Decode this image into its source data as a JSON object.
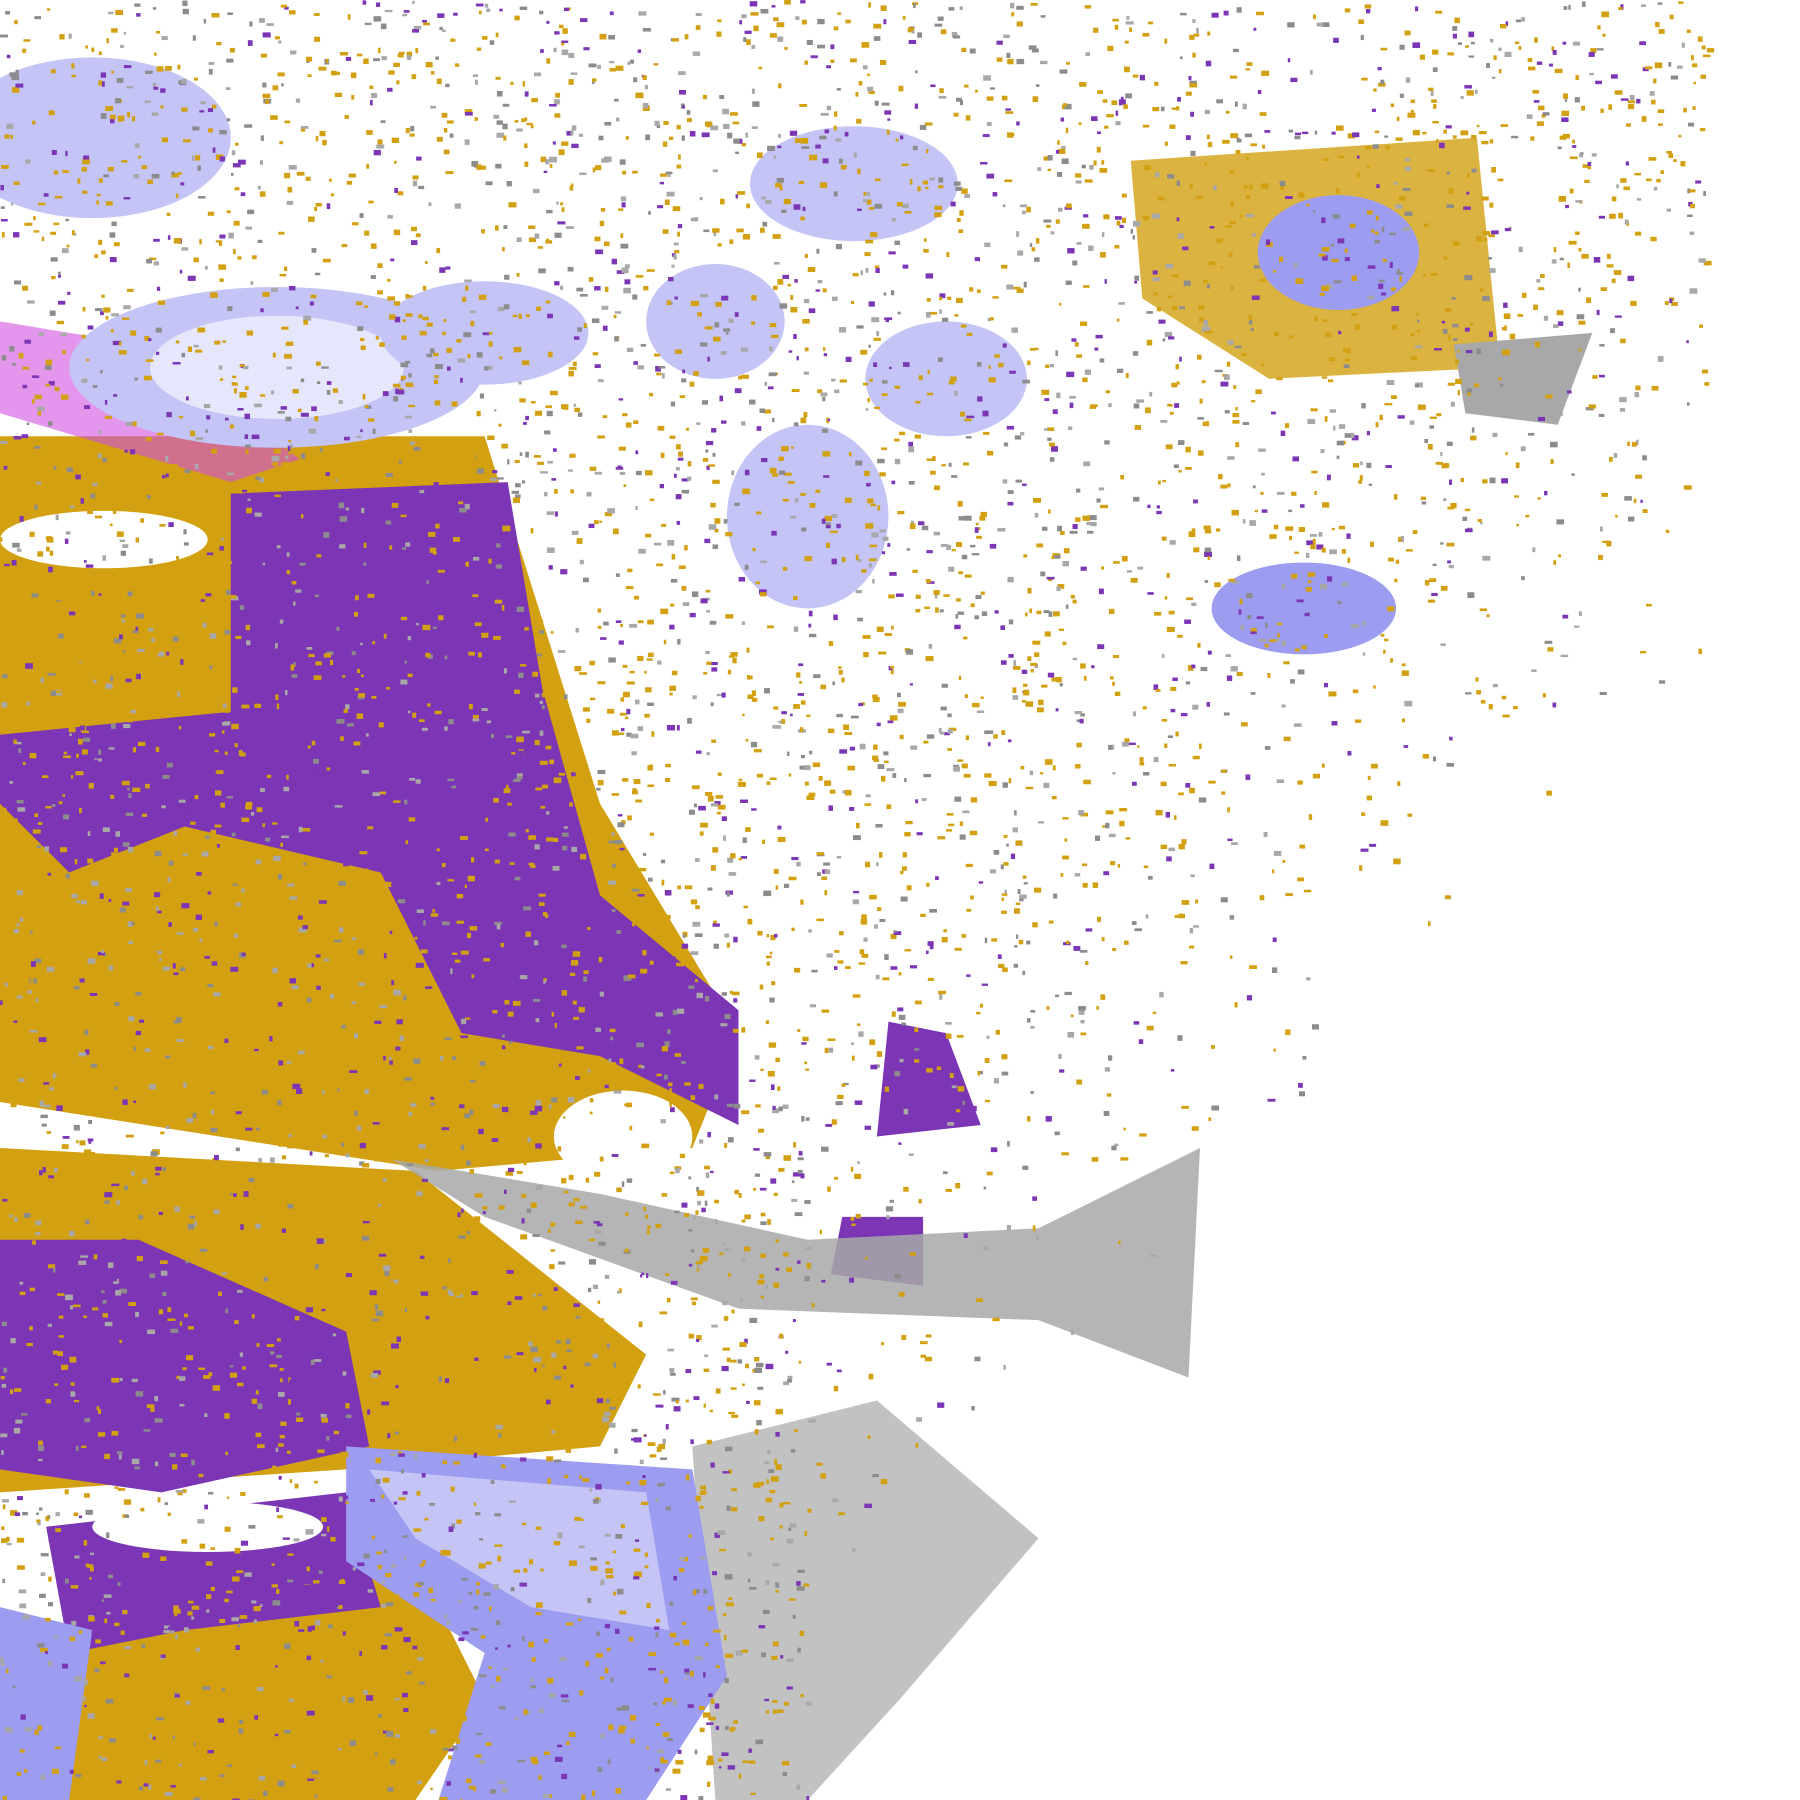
{
  "image": {
    "kind": "satellite cloud-type classification",
    "palette": {
      "background": "#ffffff",
      "gold": "#d2a010",
      "purple": "#7b35b5",
      "magenta": "#d050e0",
      "lavender_light": "#e6e6fc",
      "lavender": "#c4c4f6",
      "periwinkle": "#9c9cf0",
      "gray": "#a8a8a8",
      "gray_dark": "#8c8c8c"
    }
  }
}
